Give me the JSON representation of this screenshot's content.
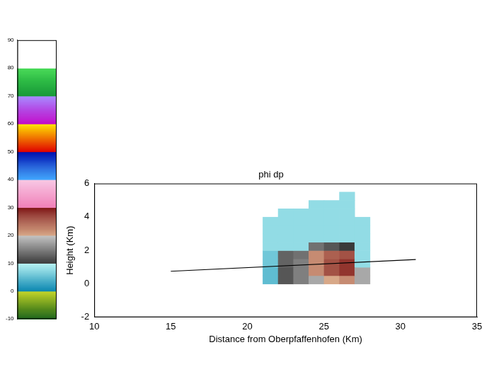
{
  "chart_data": {
    "type": "heatmap",
    "title": "phi dp",
    "x_label": "Distance from Oberpfaffenhofen (Km)",
    "y_label": "Height (Km)",
    "xlim": [
      10,
      35
    ],
    "xticks": [
      10,
      15,
      20,
      25,
      30,
      35
    ],
    "ylim": [
      -2,
      6
    ],
    "yticks": [
      -2,
      0,
      2,
      4,
      6
    ],
    "grid": false,
    "colorbar": {
      "range": [
        -10,
        90
      ],
      "ticks": [
        -10,
        0,
        10,
        20,
        30,
        40,
        50,
        60,
        70,
        80,
        90
      ]
    },
    "cells": {
      "x_edges": [
        15,
        16,
        17,
        18,
        19,
        20,
        21,
        22,
        23,
        24,
        25,
        26,
        27,
        28,
        29,
        30,
        31
      ],
      "y_edges": [
        0,
        0.5,
        1,
        1.5,
        2,
        2.5,
        3,
        3.5,
        4,
        4.5,
        5,
        5.5,
        6
      ],
      "values": [
        [
          null,
          null,
          null,
          null,
          null,
          null,
          5,
          12,
          15,
          18,
          20,
          22,
          18,
          null,
          null,
          null
        ],
        [
          null,
          null,
          null,
          null,
          null,
          null,
          5,
          12,
          15,
          22,
          26,
          28,
          18,
          null,
          null,
          null
        ],
        [
          null,
          null,
          null,
          null,
          null,
          null,
          6,
          13,
          15,
          22,
          26,
          28,
          8,
          null,
          null,
          null
        ],
        [
          null,
          null,
          null,
          null,
          null,
          null,
          6,
          13,
          14,
          22,
          25,
          26,
          8,
          null,
          null,
          null
        ],
        [
          null,
          null,
          null,
          null,
          null,
          null,
          8,
          8,
          8,
          14,
          12,
          10,
          8,
          null,
          null,
          null
        ],
        [
          null,
          null,
          null,
          null,
          null,
          null,
          8,
          8,
          8,
          8,
          8,
          8,
          8,
          null,
          null,
          null
        ],
        [
          null,
          null,
          null,
          null,
          null,
          null,
          8,
          8,
          8,
          8,
          8,
          8,
          8,
          null,
          null,
          null
        ],
        [
          null,
          null,
          null,
          null,
          null,
          null,
          8,
          8,
          8,
          8,
          8,
          8,
          8,
          null,
          null,
          null
        ],
        [
          null,
          null,
          null,
          null,
          null,
          null,
          null,
          8,
          8,
          8,
          8,
          8,
          null,
          null,
          null,
          null
        ],
        [
          null,
          null,
          null,
          null,
          null,
          null,
          null,
          null,
          null,
          8,
          8,
          8,
          null,
          null,
          null,
          null
        ],
        [
          null,
          null,
          null,
          null,
          null,
          null,
          null,
          null,
          null,
          null,
          null,
          8,
          null,
          null,
          null,
          null
        ],
        [
          null,
          null,
          null,
          null,
          null,
          null,
          null,
          null,
          null,
          null,
          null,
          null,
          null,
          null,
          null,
          null
        ]
      ]
    },
    "series": [
      {
        "type": "line",
        "color": "#000000",
        "x": [
          15,
          31
        ],
        "values": [
          0.75,
          1.45
        ]
      }
    ]
  }
}
